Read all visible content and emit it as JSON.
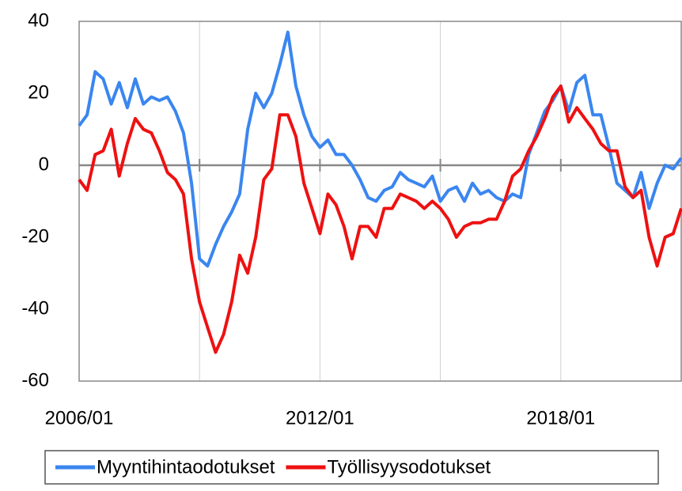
{
  "chart_data": {
    "type": "line",
    "x": [
      2006,
      2006.2,
      2006.4,
      2006.6,
      2006.8,
      2007,
      2007.2,
      2007.4,
      2007.6,
      2007.8,
      2008,
      2008.2,
      2008.4,
      2008.6,
      2008.8,
      2009,
      2009.2,
      2009.4,
      2009.6,
      2009.8,
      2010,
      2010.2,
      2010.4,
      2010.6,
      2010.8,
      2011,
      2011.2,
      2011.4,
      2011.6,
      2011.8,
      2012,
      2012.2,
      2012.4,
      2012.6,
      2012.8,
      2013,
      2013.2,
      2013.4,
      2013.6,
      2013.8,
      2014,
      2014.2,
      2014.4,
      2014.6,
      2014.8,
      2015,
      2015.2,
      2015.4,
      2015.6,
      2015.8,
      2016,
      2016.2,
      2016.4,
      2016.6,
      2016.8,
      2017,
      2017.2,
      2017.4,
      2017.6,
      2017.8,
      2018,
      2018.2,
      2018.4,
      2018.6,
      2018.8,
      2019,
      2019.2,
      2019.4,
      2019.6,
      2019.8,
      2020,
      2020.2,
      2020.4,
      2020.6,
      2020.8,
      2021
    ],
    "series": [
      {
        "name": "Myyntihintaodotukset",
        "color": "#3a86f0",
        "values": [
          11,
          14,
          26,
          24,
          17,
          23,
          16,
          24,
          17,
          19,
          18,
          19,
          15,
          9,
          -5,
          -26,
          -28,
          -22,
          -17,
          -13,
          -8,
          10,
          20,
          16,
          20,
          28,
          37,
          22,
          14,
          8,
          5,
          7,
          3,
          3,
          0,
          -4,
          -9,
          -10,
          -7,
          -6,
          -2,
          -4,
          -5,
          -6,
          -3,
          -10,
          -7,
          -6,
          -10,
          -5,
          -8,
          -7,
          -9,
          -10,
          -8,
          -9,
          3,
          9,
          15,
          18,
          22,
          15,
          23,
          25,
          14,
          14,
          5,
          -5,
          -7,
          -9,
          -2,
          -12,
          -5,
          0,
          -1,
          2
        ]
      },
      {
        "name": "Työllisyysodotukset",
        "color": "#ee1111",
        "values": [
          -4,
          -7,
          3,
          4,
          10,
          -3,
          6,
          13,
          10,
          9,
          4,
          -2,
          -4,
          -8,
          -26,
          -38,
          -45,
          -52,
          -47,
          -38,
          -25,
          -30,
          -20,
          -4,
          -1,
          14,
          14,
          8,
          -5,
          -12,
          -19,
          -8,
          -11,
          -17,
          -26,
          -17,
          -17,
          -20,
          -12,
          -12,
          -8,
          -9,
          -10,
          -12,
          -10,
          -12,
          -15,
          -20,
          -17,
          -16,
          -16,
          -15,
          -15,
          -10,
          -3,
          -1,
          4,
          8,
          13,
          19,
          22,
          12,
          16,
          13,
          10,
          6,
          4,
          4,
          -6,
          -9,
          -7,
          -20,
          -28,
          -20,
          -19,
          -12
        ]
      }
    ],
    "xlim": [
      2006,
      2021
    ],
    "xticks": [
      {
        "value": 2006,
        "label": "2006/01"
      },
      {
        "value": 2009,
        "label": null
      },
      {
        "value": 2012,
        "label": "2012/01"
      },
      {
        "value": 2015,
        "label": null
      },
      {
        "value": 2018,
        "label": "2018/01"
      }
    ],
    "ylim": [
      -60,
      40
    ],
    "yticks": [
      -60,
      -40,
      -20,
      0,
      20,
      40
    ],
    "grid": true,
    "legend": "bottom"
  }
}
